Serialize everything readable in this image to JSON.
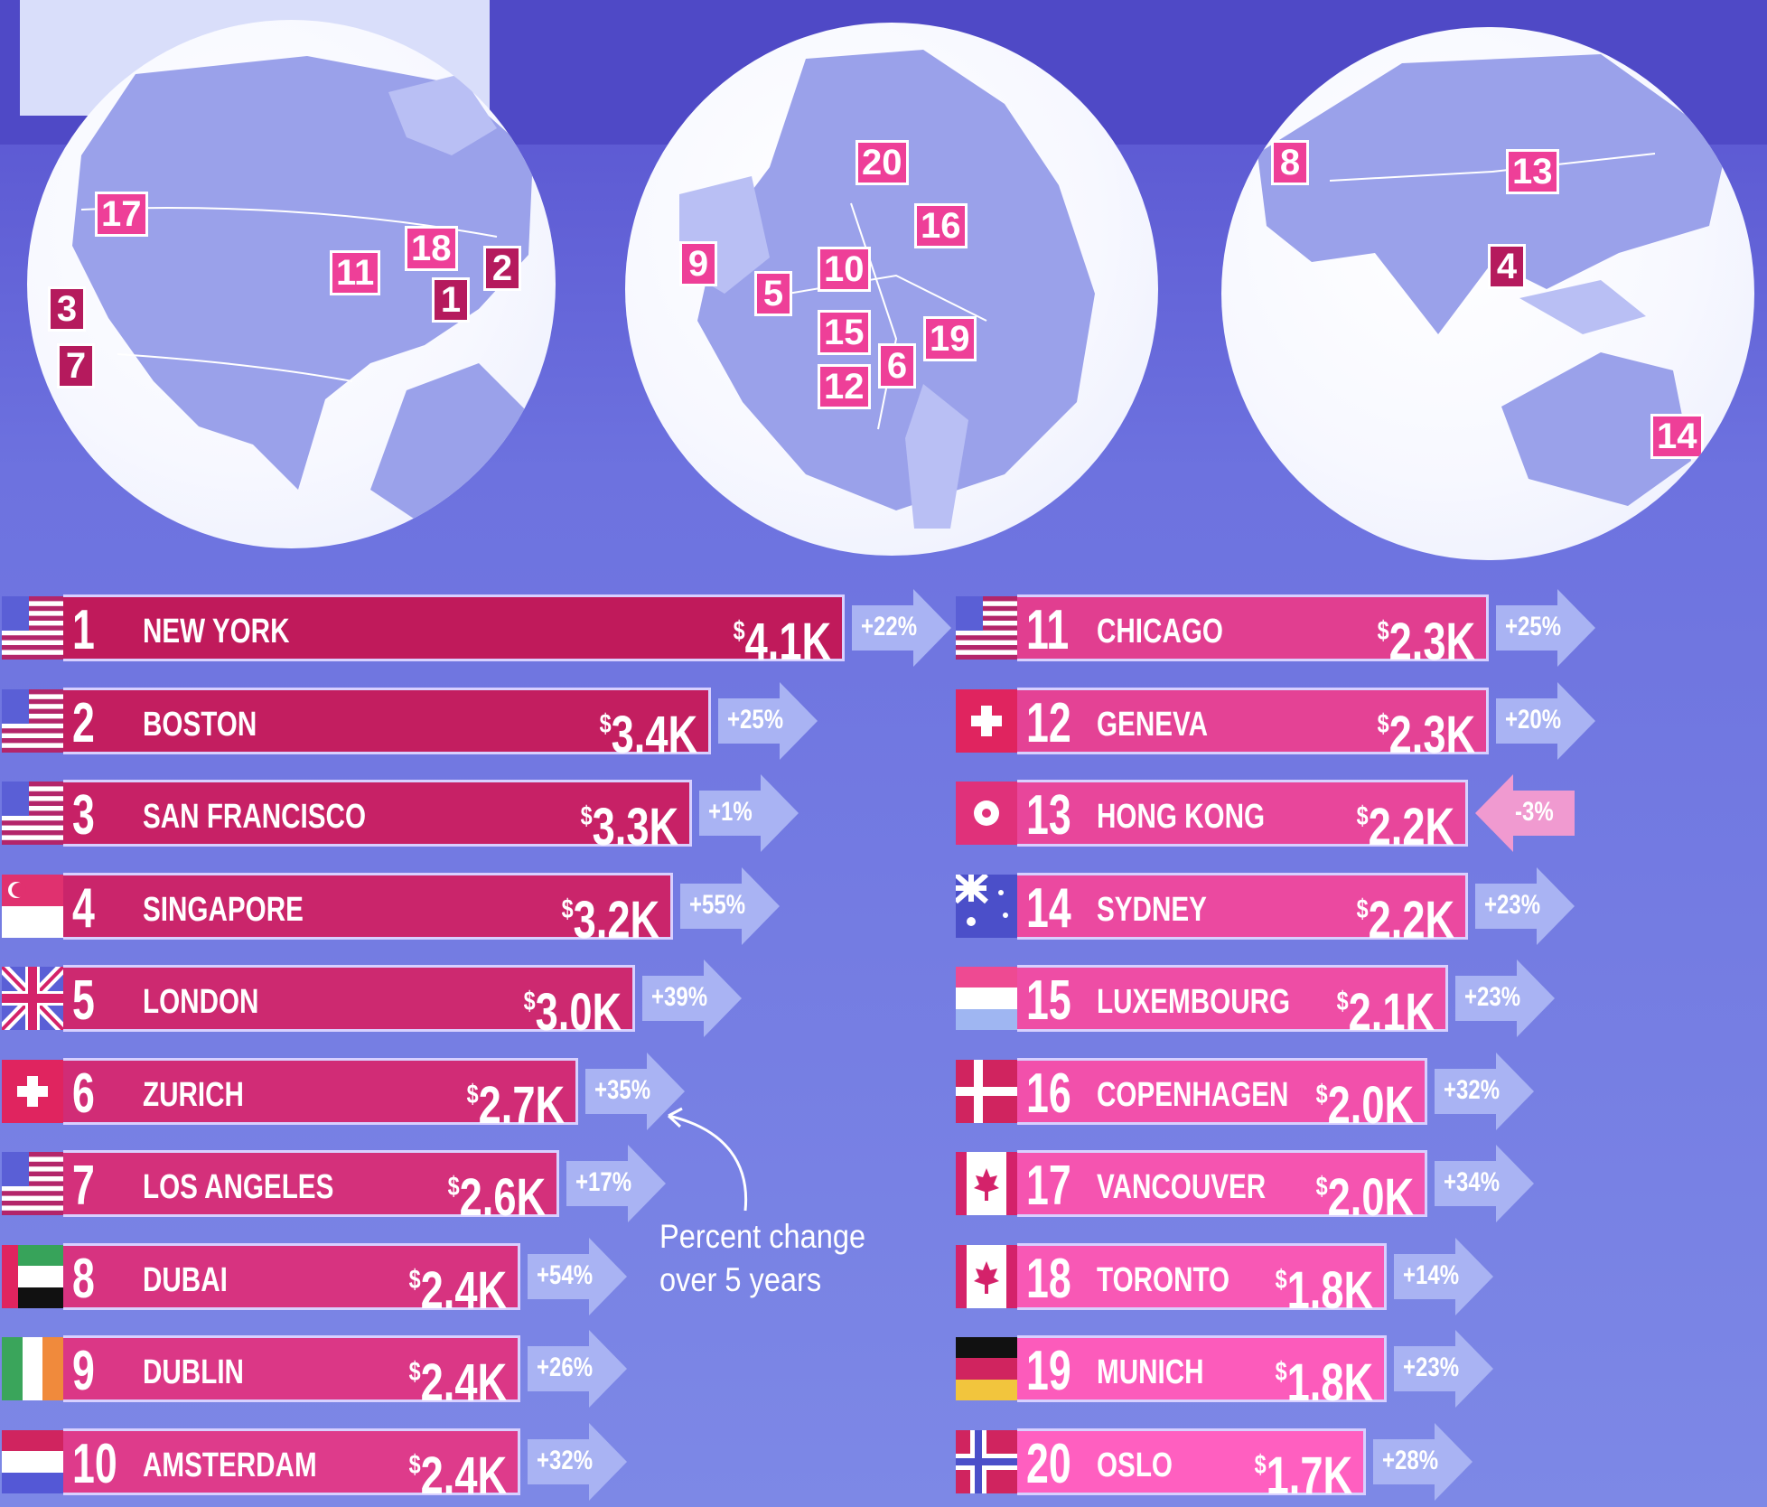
{
  "chart_data": {
    "type": "bar",
    "categories": [
      "NEW YORK",
      "BOSTON",
      "SAN FRANCISCO",
      "SINGAPORE",
      "LONDON",
      "ZURICH",
      "LOS ANGELES",
      "DUBAI",
      "DUBLIN",
      "AMSTERDAM",
      "CHICAGO",
      "GENEVA",
      "HONG KONG",
      "SYDNEY",
      "LUXEMBOURG",
      "COPENHAGEN",
      "VANCOUVER",
      "TORONTO",
      "MUNICH",
      "OSLO"
    ],
    "values": [
      4.1,
      3.4,
      3.3,
      3.2,
      3.0,
      2.7,
      2.6,
      2.4,
      2.4,
      2.4,
      2.3,
      2.3,
      2.2,
      2.2,
      2.1,
      2.0,
      2.0,
      1.8,
      1.8,
      1.7
    ],
    "rows": [
      {
        "rank": "1",
        "city": "NEW YORK",
        "value": 4.1,
        "value_label": "4.1K",
        "change": "+22%",
        "change_dir": "up",
        "country": "usa"
      },
      {
        "rank": "2",
        "city": "BOSTON",
        "value": 3.4,
        "value_label": "3.4K",
        "change": "+25%",
        "change_dir": "up",
        "country": "usa"
      },
      {
        "rank": "3",
        "city": "SAN FRANCISCO",
        "value": 3.3,
        "value_label": "3.3K",
        "change": "+1%",
        "change_dir": "up",
        "country": "usa"
      },
      {
        "rank": "4",
        "city": "SINGAPORE",
        "value": 3.2,
        "value_label": "3.2K",
        "change": "+55%",
        "change_dir": "up",
        "country": "singapore"
      },
      {
        "rank": "5",
        "city": "LONDON",
        "value": 3.0,
        "value_label": "3.0K",
        "change": "+39%",
        "change_dir": "up",
        "country": "uk"
      },
      {
        "rank": "6",
        "city": "ZURICH",
        "value": 2.7,
        "value_label": "2.7K",
        "change": "+35%",
        "change_dir": "up",
        "country": "switzerland"
      },
      {
        "rank": "7",
        "city": "LOS ANGELES",
        "value": 2.6,
        "value_label": "2.6K",
        "change": "+17%",
        "change_dir": "up",
        "country": "usa"
      },
      {
        "rank": "8",
        "city": "DUBAI",
        "value": 2.4,
        "value_label": "2.4K",
        "change": "+54%",
        "change_dir": "up",
        "country": "uae"
      },
      {
        "rank": "9",
        "city": "DUBLIN",
        "value": 2.4,
        "value_label": "2.4K",
        "change": "+26%",
        "change_dir": "up",
        "country": "ireland"
      },
      {
        "rank": "10",
        "city": "AMSTERDAM",
        "value": 2.4,
        "value_label": "2.4K",
        "change": "+32%",
        "change_dir": "up",
        "country": "netherlands"
      },
      {
        "rank": "11",
        "city": "CHICAGO",
        "value": 2.3,
        "value_label": "2.3K",
        "change": "+25%",
        "change_dir": "up",
        "country": "usa"
      },
      {
        "rank": "12",
        "city": "GENEVA",
        "value": 2.3,
        "value_label": "2.3K",
        "change": "+20%",
        "change_dir": "up",
        "country": "switzerland"
      },
      {
        "rank": "13",
        "city": "HONG KONG",
        "value": 2.2,
        "value_label": "2.2K",
        "change": "-3%",
        "change_dir": "down",
        "country": "hongkong"
      },
      {
        "rank": "14",
        "city": "SYDNEY",
        "value": 2.2,
        "value_label": "2.2K",
        "change": "+23%",
        "change_dir": "up",
        "country": "australia"
      },
      {
        "rank": "15",
        "city": "LUXEMBOURG",
        "value": 2.1,
        "value_label": "2.1K",
        "change": "+23%",
        "change_dir": "up",
        "country": "luxembourg"
      },
      {
        "rank": "16",
        "city": "COPENHAGEN",
        "value": 2.0,
        "value_label": "2.0K",
        "change": "+32%",
        "change_dir": "up",
        "country": "denmark"
      },
      {
        "rank": "17",
        "city": "VANCOUVER",
        "value": 2.0,
        "value_label": "2.0K",
        "change": "+34%",
        "change_dir": "up",
        "country": "canada"
      },
      {
        "rank": "18",
        "city": "TORONTO",
        "value": 1.8,
        "value_label": "1.8K",
        "change": "+14%",
        "change_dir": "up",
        "country": "canada"
      },
      {
        "rank": "19",
        "city": "MUNICH",
        "value": 1.8,
        "value_label": "1.8K",
        "change": "+23%",
        "change_dir": "up",
        "country": "germany"
      },
      {
        "rank": "20",
        "city": "OSLO",
        "value": 1.7,
        "value_label": "1.7K",
        "change": "+28%",
        "change_dir": "up",
        "country": "norway"
      }
    ],
    "currency_symbol": "$",
    "annotation": [
      "Percent change",
      "over 5 years"
    ],
    "title": "",
    "xlabel": "",
    "ylabel": ""
  },
  "globes": [
    {
      "region": "north-america",
      "markers": [
        "17",
        "11",
        "18",
        "2",
        "3",
        "1",
        "7"
      ]
    },
    {
      "region": "europe",
      "markers": [
        "20",
        "16",
        "9",
        "10",
        "5",
        "15",
        "19",
        "6",
        "12"
      ]
    },
    {
      "region": "asia-pacific",
      "markers": [
        "8",
        "13",
        "4",
        "14"
      ]
    }
  ],
  "colors": {
    "bar_top": "#c01a5b",
    "bar_bottom": "#ff5fc0",
    "arrow": "#a9b3f3",
    "arrow_down": "#f09ad0",
    "marker": "#ee3f98",
    "background": "#6d72df"
  }
}
